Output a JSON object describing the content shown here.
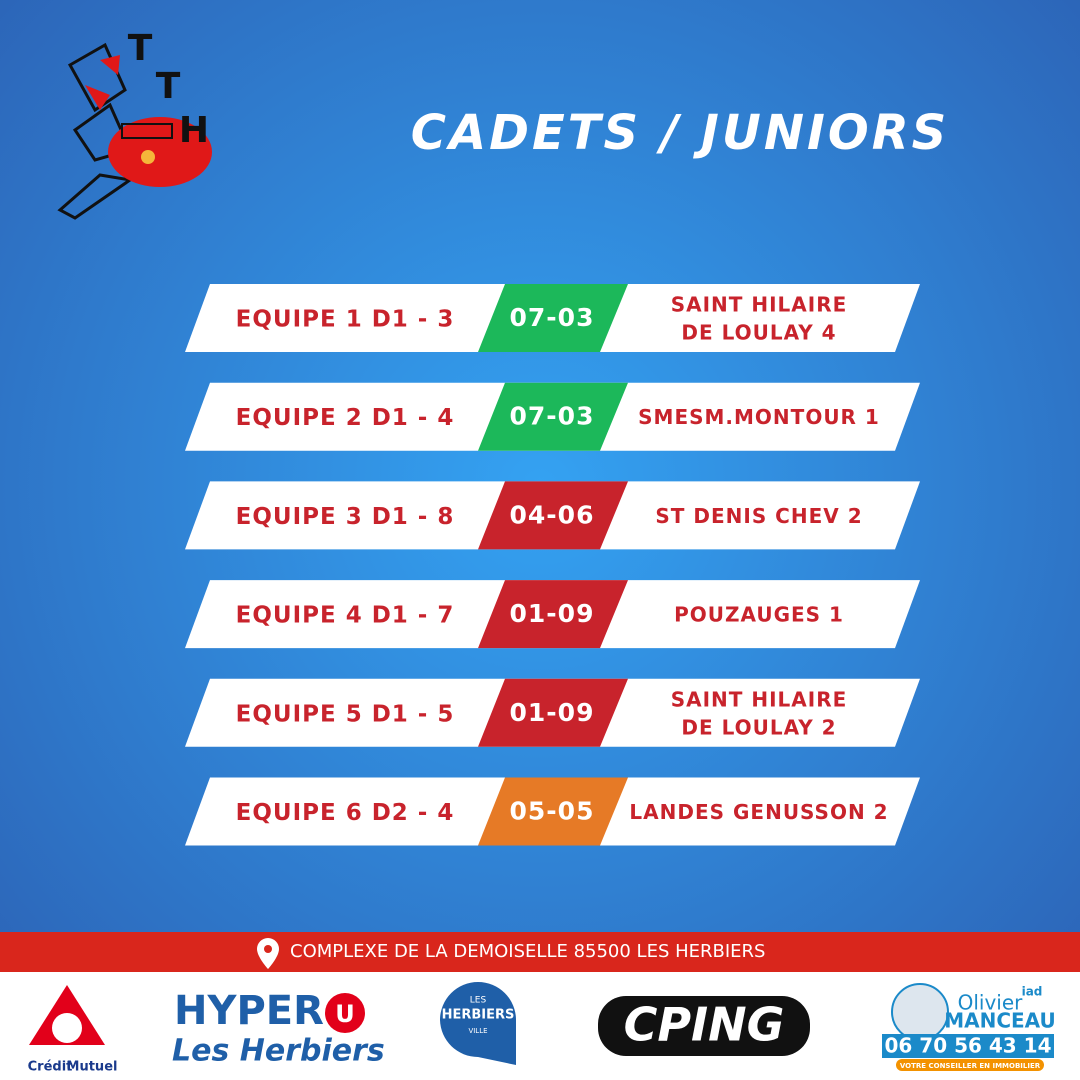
{
  "logo": {
    "letters": [
      "T",
      "T",
      "H"
    ]
  },
  "title": "CADETS / JUNIORS",
  "result_colors": {
    "win": "#1cb85a",
    "loss": "#c8232c",
    "draw": "#e67a26"
  },
  "matches": [
    {
      "team": "EQUIPE 1 D1 - 3",
      "score": "07-03",
      "result": "win",
      "opponent": [
        "SAINT HILAIRE",
        "DE LOULAY 4"
      ]
    },
    {
      "team": "EQUIPE 2 D1 - 4",
      "score": "07-03",
      "result": "win",
      "opponent": [
        "SMESM.MONTOUR 1"
      ]
    },
    {
      "team": "EQUIPE 3 D1 - 8",
      "score": "04-06",
      "result": "loss",
      "opponent": [
        "ST DENIS CHEV 2"
      ]
    },
    {
      "team": "EQUIPE 4 D1 - 7",
      "score": "01-09",
      "result": "loss",
      "opponent": [
        "POUZAUGES 1"
      ]
    },
    {
      "team": "EQUIPE 5 D1 - 5",
      "score": "01-09",
      "result": "loss",
      "opponent": [
        "SAINT HILAIRE",
        "DE LOULAY 2"
      ]
    },
    {
      "team": "EQUIPE 6 D2 - 4",
      "score": "05-05",
      "result": "draw",
      "opponent": [
        "LANDES GENUSSON 2"
      ]
    }
  ],
  "address": "COMPLEXE DE LA DEMOISELLE 85500 LES HERBIERS",
  "sponsors": {
    "credit_mutuel": [
      "Crédit",
      "Mutuel"
    ],
    "hyper_u": {
      "name": "HYPER",
      "mark": "U",
      "place": "Les Herbiers"
    },
    "ville": [
      "LES",
      "HERBIERS",
      "VILLE"
    ],
    "cping": "CPING",
    "iad": {
      "first": "Olivier",
      "last": "MANCEAU",
      "brand": "iad",
      "phone": "06 70 56 43 14",
      "tagline": "VOTRE CONSEILLER EN IMMOBILIER"
    }
  }
}
